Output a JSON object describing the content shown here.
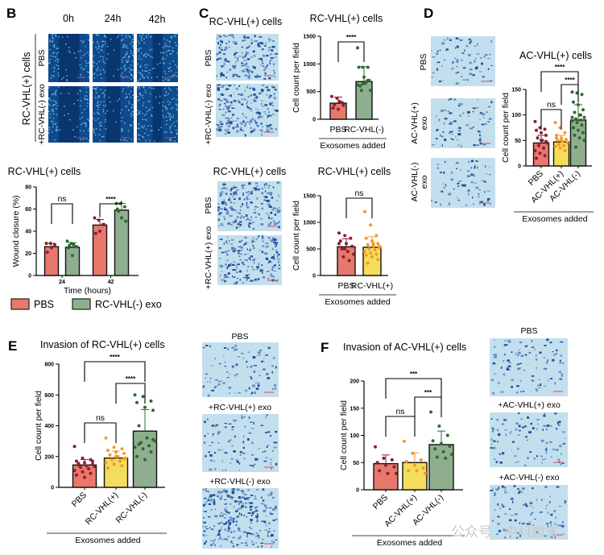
{
  "panels": {
    "B": {
      "letter": "B",
      "time_labels": [
        "0h",
        "24h",
        "42h"
      ],
      "group_label": "RC-VHL(+) cells",
      "row_labels": [
        "PBS",
        "+RC-VHL(-) exo"
      ]
    },
    "C": {
      "letter": "C",
      "top_images_title": "RC-VHL(+) cells",
      "top_row_labels": [
        "PBS",
        "+RC-VHL(-) exo"
      ],
      "bottom_images_title": "RC-VHL(+) cells",
      "bottom_row_labels": [
        "PBS",
        "+RC-VHL(+) exo"
      ]
    },
    "D": {
      "letter": "D",
      "row_labels": [
        "PBS",
        "AC-VHL(+)",
        "exo",
        "AC-VHL(-)",
        "exo"
      ]
    },
    "E": {
      "letter": "E",
      "image_labels": [
        "PBS",
        "+RC-VHL(+) exo",
        "+RC-VHL(-) exo"
      ]
    },
    "F": {
      "letter": "F",
      "image_labels": [
        "PBS",
        "+AC-VHL(+) exo",
        "+AC-VHL(-) exo"
      ]
    }
  },
  "legend": {
    "items": [
      {
        "label": "PBS",
        "color": "#e8786b"
      },
      {
        "label": "RC-VHL(-) exo",
        "color": "#8fae8f"
      }
    ]
  },
  "watermark": "公众号 · 中科微末",
  "colors": {
    "pbs": "#e8786b",
    "pos": "#f4dd5c",
    "neg": "#8fae8f",
    "dot_pbs": "#8a1f33",
    "dot_pos": "#f39a2b",
    "dot_neg": "#2c6b2f"
  },
  "chart_data": [
    {
      "id": "B",
      "type": "bar",
      "title": "RC-VHL(+) cells",
      "xlabel": "Time (hours)",
      "ylabel": "Wound closure (%)",
      "ylim": [
        0,
        80
      ],
      "yticks": [
        0,
        20,
        40,
        60,
        80
      ],
      "categories": [
        "24",
        "42"
      ],
      "series": [
        {
          "name": "PBS",
          "values": [
            26,
            45.5
          ],
          "err": [
            3,
            5
          ],
          "points": [
            [
              29,
              29,
              28,
              21,
              25
            ],
            [
              52,
              50,
              46,
              38,
              40,
              46
            ]
          ]
        },
        {
          "name": "RC-VHL(-) exo",
          "values": [
            25.5,
            59
          ],
          "err": [
            4,
            6
          ],
          "points": [
            [
              31,
              29,
              26,
              25,
              18,
              26,
              27,
              28
            ],
            [
              65,
              65,
              62,
              60,
              52,
              49,
              58
            ]
          ]
        }
      ],
      "brackets": [
        {
          "from": 0,
          "to": 1,
          "group": 0,
          "label": "ns"
        },
        {
          "from": 0,
          "to": 1,
          "group": 1,
          "label": "****"
        }
      ]
    },
    {
      "id": "C1",
      "type": "bar",
      "title": "RC-VHL(+) cells",
      "xlabel": "Exosomes added",
      "ylabel": "Cell count per field",
      "ylim": [
        0,
        1500
      ],
      "yticks": [
        0,
        500,
        1000,
        1500
      ],
      "categories": [
        "PBS",
        "RC-VHL(-)"
      ],
      "values": [
        290,
        680
      ],
      "err": [
        110,
        270
      ],
      "points": [
        [
          410,
          380,
          300,
          200,
          180,
          250,
          260,
          320
        ],
        [
          1290,
          940,
          940,
          940,
          760,
          700,
          600,
          650,
          520,
          520,
          680,
          620,
          640,
          700
        ]
      ],
      "brackets": [
        {
          "from": 0,
          "to": 1,
          "label": "****"
        }
      ]
    },
    {
      "id": "C2",
      "type": "bar",
      "title": "RC-VHL(+) cells",
      "xlabel": "Exosomes added",
      "ylabel": "Cell count per field",
      "ylim": [
        0,
        1500
      ],
      "yticks": [
        0,
        500,
        1000,
        1500
      ],
      "categories": [
        "PBS",
        "RC-VHL(+)"
      ],
      "values": [
        540,
        530
      ],
      "err": [
        150,
        200
      ],
      "points": [
        [
          800,
          750,
          700,
          650,
          600,
          550,
          500,
          450,
          400,
          350,
          280,
          600,
          500
        ],
        [
          1200,
          950,
          750,
          700,
          650,
          600,
          580,
          550,
          520,
          500,
          480,
          450,
          420,
          400,
          380,
          350,
          300,
          230,
          600,
          550
        ]
      ],
      "brackets": [
        {
          "from": 0,
          "to": 1,
          "label": "ns"
        }
      ]
    },
    {
      "id": "D",
      "type": "bar",
      "title": "AC-VHL(+) cells",
      "xlabel": "Exosomes added",
      "ylabel": "Cell count per field",
      "ylim": [
        0,
        150
      ],
      "yticks": [
        0,
        50,
        100,
        150
      ],
      "categories": [
        "PBS",
        "AC-VHL(+)",
        "AC-VHL(-)"
      ],
      "values": [
        45,
        47,
        90
      ],
      "err": [
        15,
        13,
        30
      ],
      "points": [
        [
          87,
          75,
          72,
          70,
          65,
          60,
          55,
          50,
          45,
          40,
          35,
          30,
          25,
          20,
          15,
          50,
          48
        ],
        [
          85,
          75,
          65,
          60,
          55,
          52,
          50,
          48,
          45,
          42,
          40,
          38,
          35,
          30,
          55,
          50
        ],
        [
          145,
          143,
          140,
          125,
          120,
          110,
          105,
          100,
          95,
          92,
          90,
          88,
          85,
          80,
          75,
          70,
          65,
          60,
          55,
          50,
          37,
          100,
          95
        ]
      ],
      "brackets": [
        {
          "from": 0,
          "to": 1,
          "label": "ns"
        },
        {
          "from": 1,
          "to": 2,
          "label": "****"
        },
        {
          "from": 0,
          "to": 2,
          "label": "****"
        }
      ]
    },
    {
      "id": "E",
      "type": "bar",
      "title": "Invasion of RC-VHL(+) cells",
      "xlabel": "Exosomes added",
      "ylabel": "Cell count per field",
      "ylim": [
        0,
        800
      ],
      "yticks": [
        0,
        200,
        400,
        600,
        800
      ],
      "categories": [
        "PBS",
        "RC-VHL(+)",
        "RC-VHL(-)"
      ],
      "values": [
        145,
        190,
        365
      ],
      "err": [
        35,
        45,
        140
      ],
      "points": [
        [
          265,
          190,
          180,
          170,
          160,
          150,
          145,
          140,
          135,
          130,
          120,
          110,
          100,
          90,
          80,
          65,
          170,
          155
        ],
        [
          320,
          260,
          250,
          240,
          230,
          220,
          210,
          200,
          190,
          180,
          170,
          160,
          150,
          140,
          125,
          200,
          185
        ],
        [
          600,
          590,
          560,
          550,
          520,
          500,
          400,
          320,
          300,
          290,
          270,
          260,
          250,
          230,
          200,
          180,
          310,
          280
        ]
      ],
      "brackets": [
        {
          "from": 0,
          "to": 1,
          "label": "ns"
        },
        {
          "from": 1,
          "to": 2,
          "label": "****"
        },
        {
          "from": 0,
          "to": 2,
          "label": "****"
        }
      ]
    },
    {
      "id": "F",
      "type": "bar",
      "title": "Invasion of AC-VHL(+) cells",
      "xlabel": "Exosomes added",
      "ylabel": "Cell count per field",
      "ylim": [
        0,
        200
      ],
      "yticks": [
        0,
        50,
        100,
        150,
        200
      ],
      "categories": [
        "PBS",
        "AC-VHL(+)",
        "AC-VHL(-)"
      ],
      "values": [
        48,
        50,
        83
      ],
      "err": [
        16,
        18,
        25
      ],
      "points": [
        [
          79,
          58,
          55,
          50,
          45,
          42,
          35,
          30,
          30
        ],
        [
          89,
          67,
          55,
          52,
          45,
          40,
          35,
          35,
          30
        ],
        [
          143,
          117,
          100,
          90,
          85,
          80,
          75,
          70,
          65,
          60,
          58
        ]
      ],
      "brackets": [
        {
          "from": 0,
          "to": 1,
          "label": "ns"
        },
        {
          "from": 1,
          "to": 2,
          "label": "***"
        },
        {
          "from": 0,
          "to": 2,
          "label": "***"
        }
      ]
    }
  ]
}
